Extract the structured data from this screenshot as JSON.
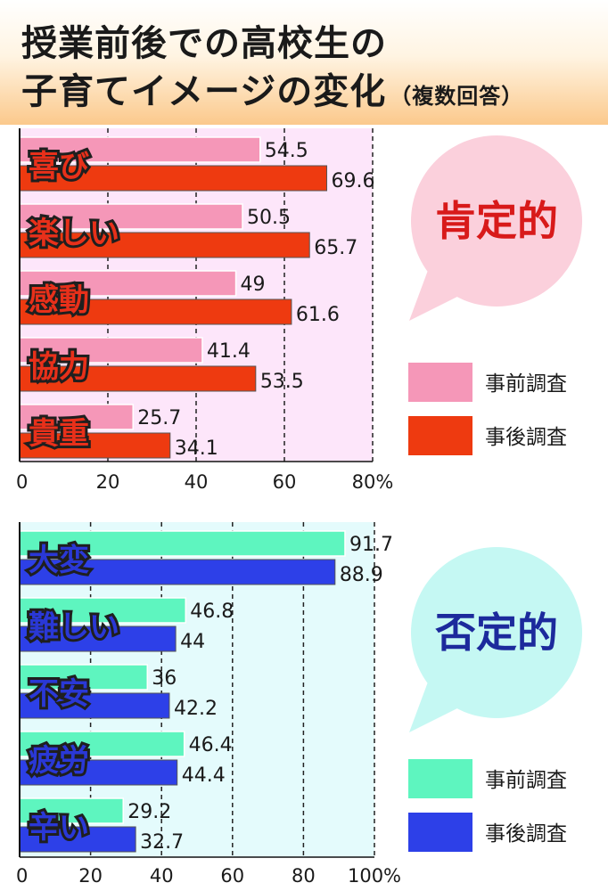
{
  "header": {
    "title_line1": "授業前後での高校生の",
    "title_line2": "子育てイメージの変化",
    "title_note": "（複数回答）"
  },
  "chart_data": [
    {
      "type": "bar",
      "orientation": "horizontal",
      "group_label": "肯定的",
      "categories": [
        "喜び",
        "楽しい",
        "感動",
        "協力",
        "貴重"
      ],
      "series": [
        {
          "name": "事前調査",
          "values": [
            54.5,
            50.5,
            49,
            41.4,
            25.7
          ],
          "color": "#f597b8"
        },
        {
          "name": "事後調査",
          "values": [
            69.6,
            65.7,
            61.6,
            53.5,
            34.1
          ],
          "color": "#ee3a10"
        }
      ],
      "value_labels": {
        "事前調査": [
          "54.5",
          "50.5",
          "49",
          "41.4",
          "25.7"
        ],
        "事後調査": [
          "69.6",
          "65.7",
          "61.6",
          "53.5",
          "34.1"
        ]
      },
      "xlim": [
        0,
        80
      ],
      "xticks": [
        "0",
        "20",
        "40",
        "60",
        "80%"
      ],
      "grid": true,
      "background": "#fde6fa",
      "label_color": "#e8301a",
      "bubble_color": "#fbd0dc",
      "bubble_text_color": "#d81a1a",
      "legend_position": "right"
    },
    {
      "type": "bar",
      "orientation": "horizontal",
      "group_label": "否定的",
      "categories": [
        "大変",
        "難しい",
        "不安",
        "疲労",
        "辛い"
      ],
      "series": [
        {
          "name": "事前調査",
          "values": [
            91.7,
            46.8,
            36,
            46.4,
            29.2
          ],
          "color": "#5ef5bf"
        },
        {
          "name": "事後調査",
          "values": [
            88.9,
            44,
            42.2,
            44.4,
            32.7
          ],
          "color": "#2d40e8"
        }
      ],
      "value_labels": {
        "事前調査": [
          "91.7",
          "46.8",
          "36",
          "46.4",
          "29.2"
        ],
        "事後調査": [
          "88.9",
          "44",
          "42.2",
          "44.4",
          "32.7"
        ]
      },
      "xlim": [
        0,
        100
      ],
      "xticks": [
        "0",
        "20",
        "40",
        "60",
        "80",
        "100%"
      ],
      "grid": true,
      "background": "#e4fbfc",
      "label_color": "#2a38d6",
      "bubble_color": "#c5f8f3",
      "bubble_text_color": "#1c2a9c",
      "legend_position": "right"
    }
  ]
}
